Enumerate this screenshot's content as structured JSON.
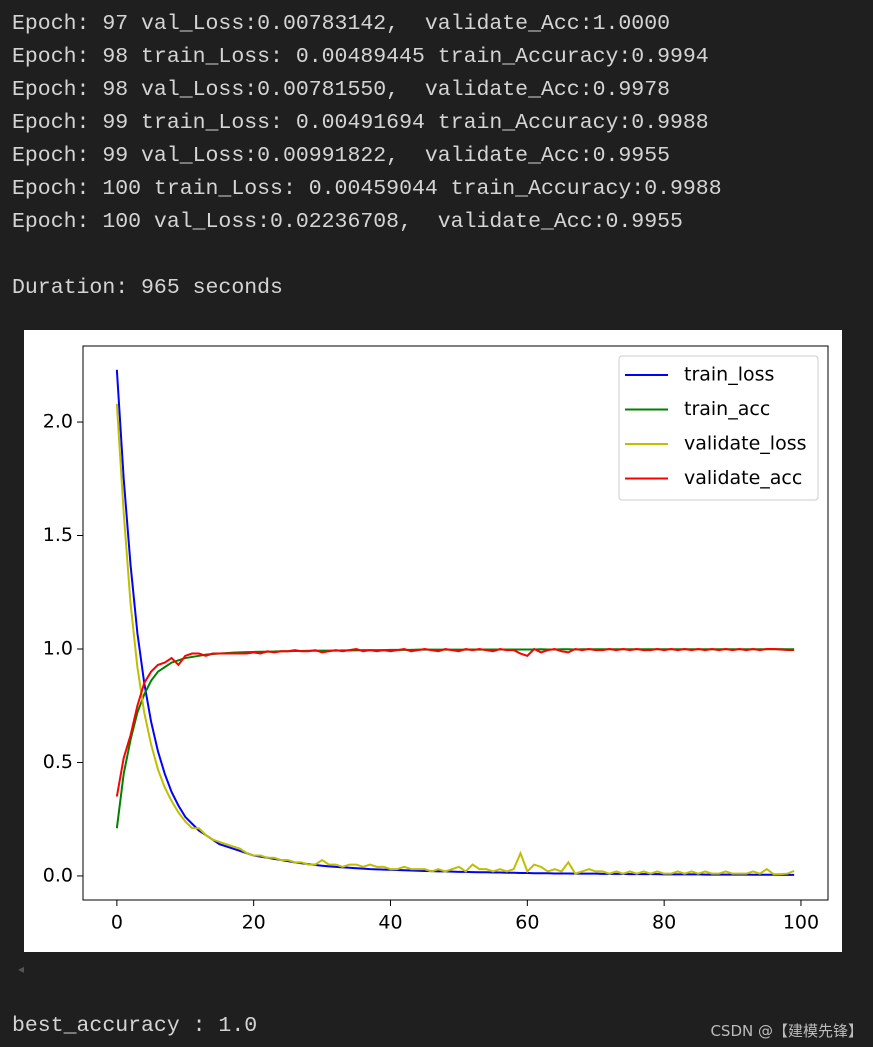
{
  "output_lines": [
    "Epoch: 97 val_Loss:0.00783142,  validate_Acc:1.0000",
    "Epoch: 98 train_Loss: 0.00489445 train_Accuracy:0.9994",
    "Epoch: 98 val_Loss:0.00781550,  validate_Acc:0.9978",
    "Epoch: 99 train_Loss: 0.00491694 train_Accuracy:0.9988",
    "Epoch: 99 val_Loss:0.00991822,  validate_Acc:0.9955",
    "Epoch: 100 train_Loss: 0.00459044 train_Accuracy:0.9988",
    "Epoch: 100 val_Loss:0.02236708,  validate_Acc:0.9955"
  ],
  "duration": "Duration: 965 seconds",
  "chart_data": {
    "type": "line",
    "x": [
      0,
      1,
      2,
      3,
      4,
      5,
      6,
      7,
      8,
      9,
      10,
      11,
      12,
      13,
      14,
      15,
      16,
      17,
      18,
      19,
      20,
      21,
      22,
      23,
      24,
      25,
      26,
      27,
      28,
      29,
      30,
      31,
      32,
      33,
      34,
      35,
      36,
      37,
      38,
      39,
      40,
      41,
      42,
      43,
      44,
      45,
      46,
      47,
      48,
      49,
      50,
      51,
      52,
      53,
      54,
      55,
      56,
      57,
      58,
      59,
      60,
      61,
      62,
      63,
      64,
      65,
      66,
      67,
      68,
      69,
      70,
      71,
      72,
      73,
      74,
      75,
      76,
      77,
      78,
      79,
      80,
      81,
      82,
      83,
      84,
      85,
      86,
      87,
      88,
      89,
      90,
      91,
      92,
      93,
      94,
      95,
      96,
      97,
      98,
      99
    ],
    "series": [
      {
        "name": "train_loss",
        "color": "#0000ff",
        "values": [
          2.23,
          1.75,
          1.37,
          1.07,
          0.85,
          0.68,
          0.55,
          0.45,
          0.37,
          0.31,
          0.26,
          0.23,
          0.2,
          0.18,
          0.16,
          0.14,
          0.13,
          0.12,
          0.11,
          0.1,
          0.09,
          0.085,
          0.08,
          0.075,
          0.07,
          0.065,
          0.06,
          0.056,
          0.052,
          0.048,
          0.045,
          0.042,
          0.04,
          0.038,
          0.036,
          0.034,
          0.032,
          0.03,
          0.029,
          0.028,
          0.027,
          0.026,
          0.025,
          0.024,
          0.023,
          0.022,
          0.021,
          0.02,
          0.02,
          0.019,
          0.018,
          0.018,
          0.017,
          0.016,
          0.016,
          0.015,
          0.015,
          0.014,
          0.014,
          0.013,
          0.013,
          0.012,
          0.012,
          0.012,
          0.011,
          0.011,
          0.011,
          0.01,
          0.01,
          0.01,
          0.01,
          0.009,
          0.009,
          0.009,
          0.009,
          0.008,
          0.008,
          0.008,
          0.008,
          0.008,
          0.007,
          0.007,
          0.007,
          0.007,
          0.007,
          0.007,
          0.006,
          0.006,
          0.006,
          0.006,
          0.006,
          0.006,
          0.006,
          0.005,
          0.005,
          0.005,
          0.005,
          0.00489,
          0.00492,
          0.00459
        ]
      },
      {
        "name": "train_acc",
        "color": "#008000",
        "values": [
          0.21,
          0.45,
          0.6,
          0.72,
          0.8,
          0.86,
          0.9,
          0.92,
          0.94,
          0.95,
          0.96,
          0.965,
          0.97,
          0.975,
          0.978,
          0.98,
          0.982,
          0.984,
          0.985,
          0.986,
          0.987,
          0.988,
          0.988,
          0.989,
          0.99,
          0.99,
          0.991,
          0.991,
          0.992,
          0.992,
          0.993,
          0.993,
          0.993,
          0.994,
          0.994,
          0.994,
          0.995,
          0.995,
          0.995,
          0.995,
          0.996,
          0.996,
          0.996,
          0.996,
          0.997,
          0.997,
          0.997,
          0.997,
          0.997,
          0.997,
          0.997,
          0.997,
          0.998,
          0.997,
          0.998,
          0.998,
          0.998,
          0.998,
          0.998,
          0.998,
          0.998,
          0.998,
          0.999,
          0.998,
          0.998,
          0.999,
          0.999,
          0.998,
          0.999,
          0.999,
          0.999,
          0.999,
          0.999,
          0.999,
          0.999,
          0.999,
          0.999,
          0.999,
          0.999,
          0.999,
          0.999,
          0.999,
          0.999,
          0.999,
          0.999,
          0.999,
          0.999,
          0.999,
          0.999,
          0.999,
          0.999,
          0.999,
          0.999,
          0.999,
          0.999,
          0.999,
          0.999,
          0.9994,
          0.9988,
          0.9988
        ]
      },
      {
        "name": "validate_loss",
        "color": "#bfbf00",
        "values": [
          2.08,
          1.6,
          1.2,
          0.92,
          0.72,
          0.58,
          0.47,
          0.39,
          0.33,
          0.28,
          0.24,
          0.21,
          0.21,
          0.18,
          0.16,
          0.15,
          0.14,
          0.13,
          0.12,
          0.1,
          0.09,
          0.09,
          0.08,
          0.08,
          0.07,
          0.07,
          0.06,
          0.06,
          0.05,
          0.05,
          0.07,
          0.05,
          0.05,
          0.04,
          0.05,
          0.05,
          0.04,
          0.05,
          0.04,
          0.04,
          0.03,
          0.03,
          0.04,
          0.03,
          0.03,
          0.03,
          0.02,
          0.03,
          0.02,
          0.03,
          0.04,
          0.02,
          0.05,
          0.03,
          0.03,
          0.02,
          0.03,
          0.02,
          0.03,
          0.1,
          0.02,
          0.05,
          0.04,
          0.02,
          0.03,
          0.02,
          0.06,
          0.01,
          0.02,
          0.03,
          0.02,
          0.02,
          0.01,
          0.02,
          0.01,
          0.02,
          0.01,
          0.02,
          0.01,
          0.02,
          0.01,
          0.01,
          0.02,
          0.01,
          0.02,
          0.01,
          0.02,
          0.01,
          0.01,
          0.02,
          0.01,
          0.01,
          0.01,
          0.02,
          0.01,
          0.03,
          0.00783,
          0.00782,
          0.00992,
          0.02237
        ]
      },
      {
        "name": "validate_acc",
        "color": "#ff0000",
        "values": [
          0.35,
          0.52,
          0.62,
          0.75,
          0.85,
          0.9,
          0.93,
          0.94,
          0.96,
          0.93,
          0.97,
          0.98,
          0.98,
          0.97,
          0.98,
          0.98,
          0.98,
          0.98,
          0.98,
          0.98,
          0.985,
          0.98,
          0.99,
          0.985,
          0.99,
          0.99,
          0.995,
          0.99,
          0.99,
          0.995,
          0.985,
          0.99,
          0.995,
          0.99,
          0.995,
          1.0,
          0.99,
          0.995,
          0.99,
          0.995,
          0.99,
          0.995,
          1.0,
          0.99,
          0.995,
          1.0,
          0.995,
          0.99,
          1.0,
          0.995,
          0.99,
          1.0,
          0.995,
          1.0,
          0.995,
          0.99,
          1.0,
          0.995,
          0.995,
          0.98,
          0.97,
          1.0,
          0.985,
          0.995,
          1.0,
          0.99,
          0.985,
          1.0,
          0.995,
          1.0,
          0.995,
          0.995,
          1.0,
          0.995,
          1.0,
          0.995,
          1.0,
          0.995,
          0.995,
          1.0,
          0.995,
          1.0,
          0.995,
          1.0,
          0.995,
          1.0,
          0.995,
          1.0,
          0.995,
          1.0,
          0.995,
          1.0,
          0.995,
          1.0,
          0.995,
          1.0,
          1.0,
          0.9978,
          0.9955,
          0.9955
        ]
      }
    ],
    "xlim": [
      -4.95,
      103.95
    ],
    "xticks": [
      0,
      20,
      40,
      60,
      80,
      100
    ],
    "ylim": [
      -0.106,
      2.335
    ],
    "yticks": [
      {
        "value": 0,
        "label": "0.0"
      },
      0.5,
      {
        "value": 1,
        "label": "1.0"
      },
      1.5,
      {
        "value": 2,
        "label": "2.0"
      }
    ],
    "grid": false,
    "legend": "upper right"
  },
  "result": "best_accuracy : 1.0",
  "watermark": "CSDN @【建模先锋】"
}
